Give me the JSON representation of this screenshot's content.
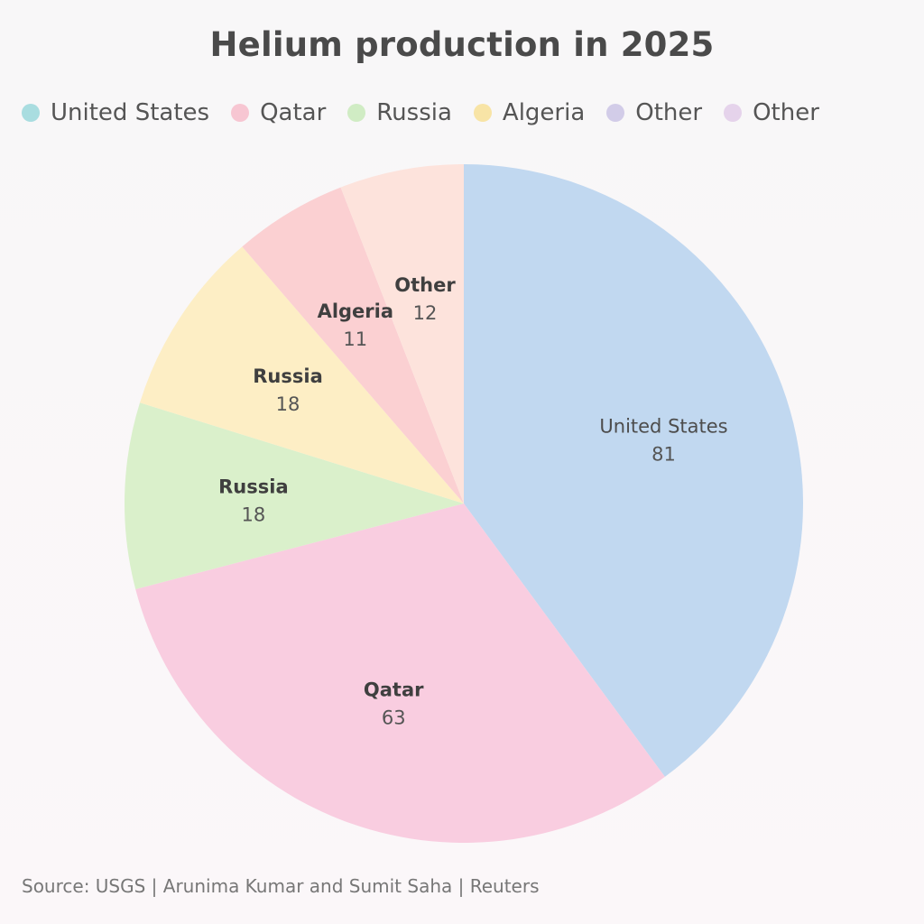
{
  "chart_data": {
    "type": "pie",
    "title": "Helium production in 2025",
    "legend_position": "top-left",
    "legend": [
      {
        "label": "United States",
        "color": "#a9dde0"
      },
      {
        "label": "Qatar",
        "color": "#f7c6d2"
      },
      {
        "label": "Russia",
        "color": "#d0ecc4"
      },
      {
        "label": "Algeria",
        "color": "#f8e4a6"
      },
      {
        "label": "Other",
        "color": "#d2cce8"
      },
      {
        "label": "Other",
        "color": "#e5d3eb"
      }
    ],
    "slices": [
      {
        "label": "United States",
        "value": 81,
        "value_label": "81",
        "color": "#c1d8f0"
      },
      {
        "label": "Qatar",
        "value": 63,
        "value_label": "63",
        "color": "#f9cde0"
      },
      {
        "label": "Russia",
        "value": 18,
        "value_label": "18",
        "color": "#daf0cb"
      },
      {
        "label": "Russia",
        "value": 18,
        "value_label": "18",
        "color": "#fdeec5"
      },
      {
        "label": "Algeria",
        "value": 11,
        "value_label": "11",
        "color": "#fbd0d2"
      },
      {
        "label": "Other",
        "value": 12,
        "value_label": "12",
        "color": "#fde3dc"
      }
    ]
  },
  "source": "Source: USGS | Arunima Kumar and Sumit Saha | Reuters"
}
